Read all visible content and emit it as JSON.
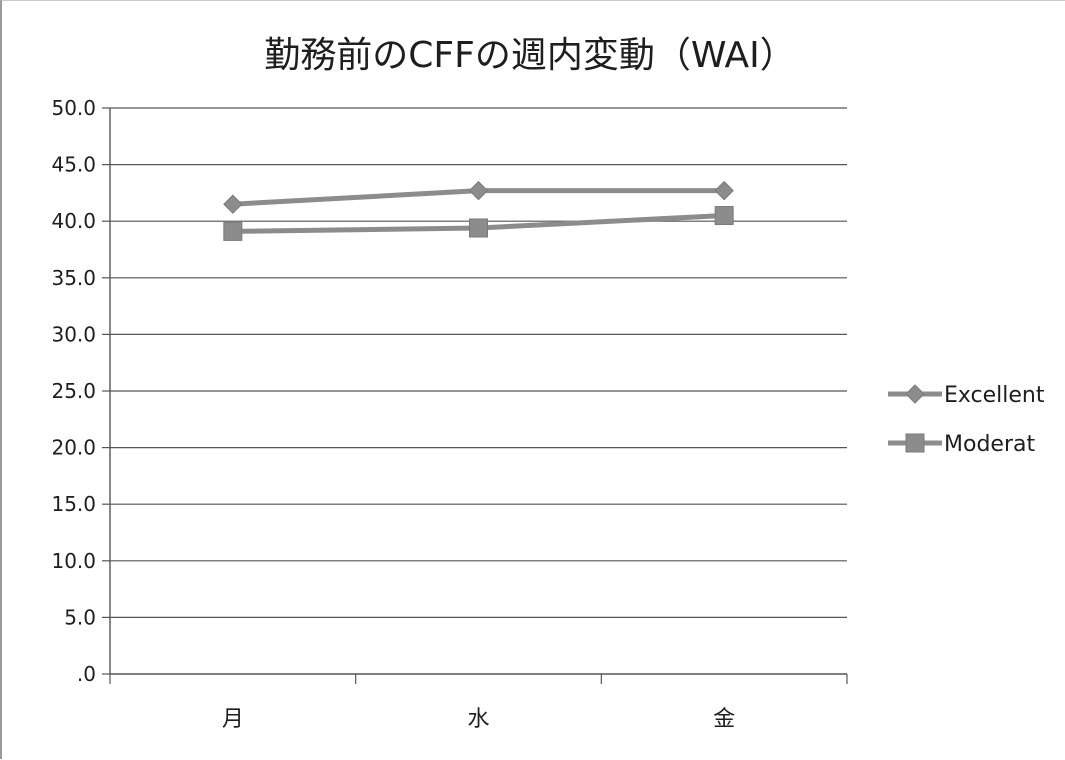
{
  "chart_data": {
    "type": "line",
    "title": "勤務前のCFFの週内変動（WAI）",
    "categories": [
      "月",
      "水",
      "金"
    ],
    "series": [
      {
        "name": "Excellent",
        "values": [
          41.5,
          42.7,
          42.7
        ],
        "marker": "diamond",
        "color": "#8c8c8c"
      },
      {
        "name": "Moderat",
        "values": [
          39.1,
          39.4,
          40.5
        ],
        "marker": "square",
        "color": "#8c8c8c"
      }
    ],
    "ylim": [
      0,
      50
    ],
    "yticks": [
      {
        "value": 50,
        "label": "50.0"
      },
      {
        "value": 45,
        "label": "45.0"
      },
      {
        "value": 40,
        "label": "40.0"
      },
      {
        "value": 35,
        "label": "35.0"
      },
      {
        "value": 30,
        "label": "30.0"
      },
      {
        "value": 25,
        "label": "25.0"
      },
      {
        "value": 20,
        "label": "20.0"
      },
      {
        "value": 15,
        "label": "15.0"
      },
      {
        "value": 10,
        "label": "10.0"
      },
      {
        "value": 5,
        "label": "5.0"
      },
      {
        "value": 0,
        "label": ".0"
      }
    ],
    "grid": true,
    "legend_position": "right",
    "colors": {
      "gridline": "#555555",
      "axis": "#555555",
      "text": "#1e1e1e"
    }
  }
}
